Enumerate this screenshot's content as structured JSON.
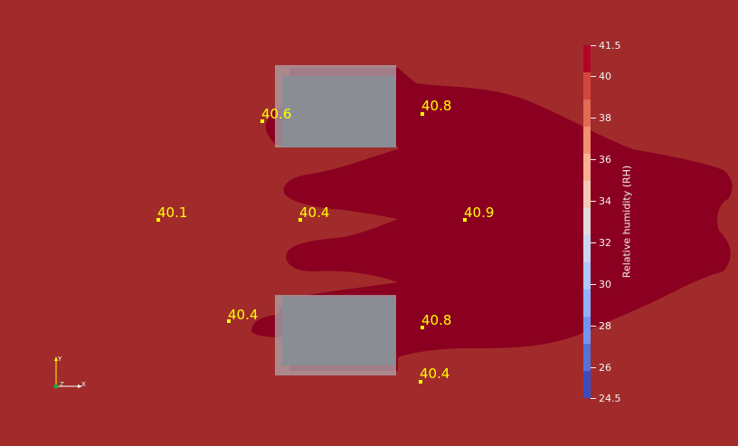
{
  "probes": [
    {
      "id": "p1",
      "value": "40.6"
    },
    {
      "id": "p2",
      "value": "40.8"
    },
    {
      "id": "p3",
      "value": "40.1"
    },
    {
      "id": "p4",
      "value": "40.4"
    },
    {
      "id": "p5",
      "value": "40.9"
    },
    {
      "id": "p6",
      "value": "40.4"
    },
    {
      "id": "p7",
      "value": "40.8"
    },
    {
      "id": "p8",
      "value": "40.4"
    }
  ],
  "colorbar": {
    "title": "Relative humidity (RH)",
    "min": 24.5,
    "max": 41.5,
    "ticks": [
      "41.5",
      "40",
      "38",
      "36",
      "34",
      "32",
      "30",
      "28",
      "26",
      "24.5"
    ],
    "colors_top_to_bottom": [
      "#b40426",
      "#d0473d",
      "#e36a53",
      "#f29072",
      "#f6b194",
      "#f2cbb7",
      "#e1dbde",
      "#c9d7f0",
      "#aec9fb",
      "#91b3fe",
      "#7295f5",
      "#5472dc",
      "#3b4cc0"
    ]
  },
  "colors": {
    "background": "#a12b2b",
    "plume": "#8b0020",
    "obstacle": "#8a8d94",
    "label": "#ffff00"
  },
  "axes": {
    "x": "X",
    "y": "Y",
    "z": "Z"
  }
}
